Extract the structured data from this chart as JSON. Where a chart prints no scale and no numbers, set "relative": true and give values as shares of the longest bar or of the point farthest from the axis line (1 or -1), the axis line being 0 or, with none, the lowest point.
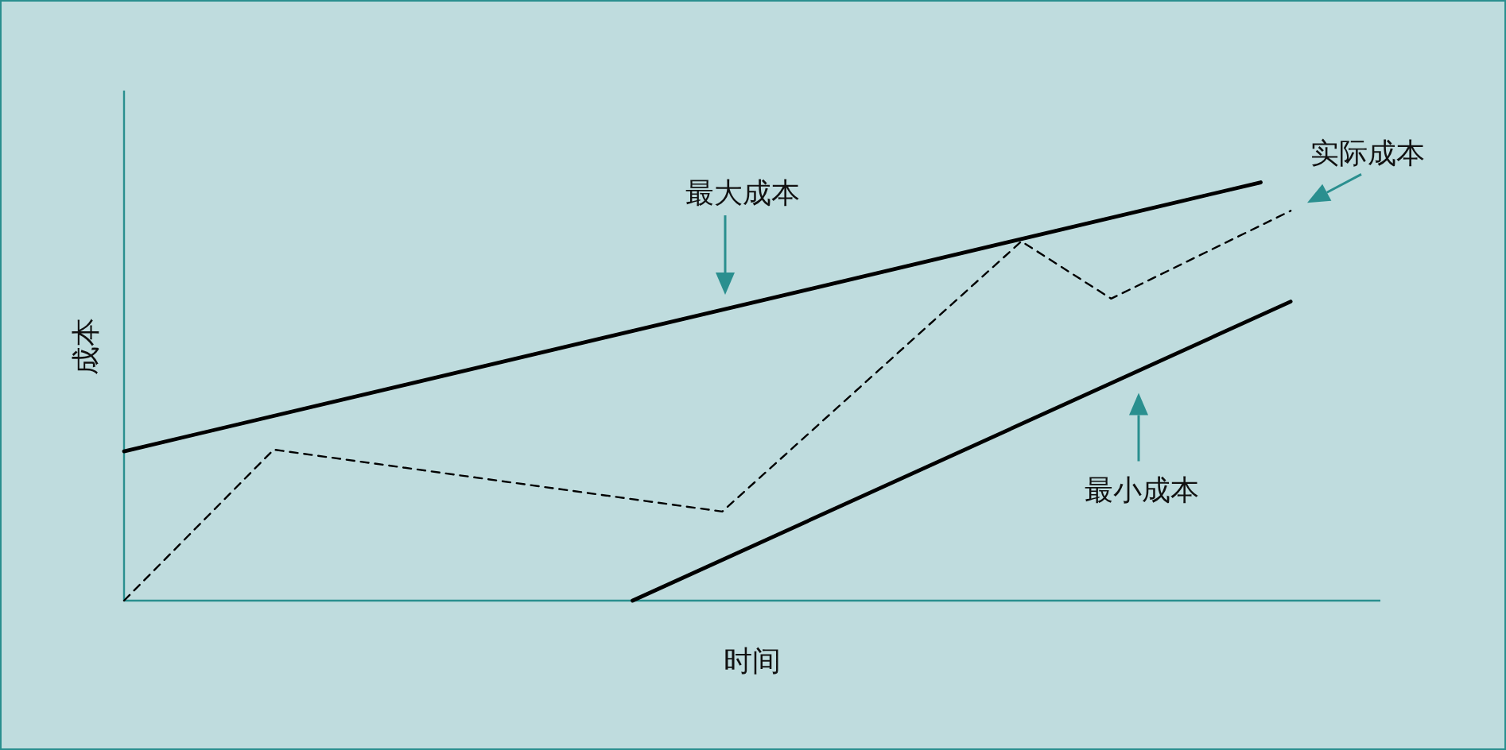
{
  "chart_data": {
    "type": "line",
    "relative": true,
    "xlabel": "时间",
    "ylabel": "成本",
    "categories": [
      null,
      null,
      null,
      null,
      null,
      null,
      null,
      null,
      null,
      null,
      null,
      null,
      null,
      null,
      null,
      null,
      null,
      null,
      null,
      null,
      null,
      null,
      null,
      null,
      null,
      null,
      null,
      null,
      null,
      null,
      null,
      null,
      null,
      null,
      null,
      null,
      null,
      null,
      null,
      null,
      null,
      null,
      null
    ],
    "series": [
      {
        "name": "最大成本",
        "color": "#000000",
        "line_style": "solid",
        "values": [
          0.357,
          null,
          null,
          null,
          null,
          null,
          null,
          null,
          null,
          null,
          null,
          null,
          null,
          null,
          null,
          null,
          null,
          null,
          null,
          null,
          null,
          null,
          null,
          null,
          null,
          null,
          null,
          null,
          null,
          null,
          null,
          null,
          null,
          null,
          null,
          null,
          null,
          null,
          1,
          null,
          null,
          null,
          null
        ]
      },
      {
        "name": "实际成本",
        "color": "#000000",
        "line_style": "dashed",
        "values": [
          0,
          null,
          null,
          null,
          null,
          0.361,
          null,
          null,
          null,
          null,
          null,
          null,
          null,
          null,
          null,
          null,
          null,
          null,
          null,
          null,
          0.213,
          null,
          null,
          null,
          null,
          null,
          null,
          null,
          null,
          null,
          0.859,
          null,
          null,
          0.722,
          null,
          null,
          null,
          null,
          null,
          0.932,
          null,
          null,
          null
        ]
      },
      {
        "name": "最小成本",
        "color": "#000000",
        "line_style": "solid",
        "values": [
          null,
          null,
          null,
          null,
          null,
          null,
          null,
          null,
          null,
          null,
          null,
          null,
          null,
          null,
          null,
          null,
          null,
          0,
          null,
          null,
          null,
          null,
          null,
          null,
          null,
          null,
          null,
          null,
          null,
          null,
          null,
          null,
          null,
          null,
          null,
          null,
          null,
          null,
          null,
          0.715,
          null,
          null,
          null
        ]
      }
    ]
  }
}
